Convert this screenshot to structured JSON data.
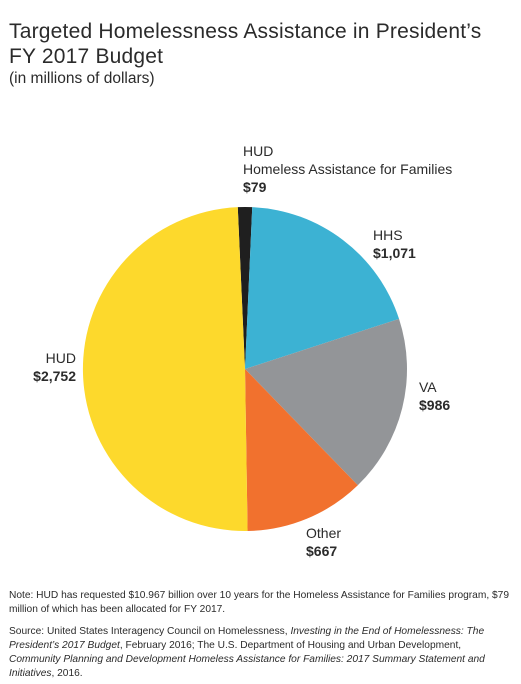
{
  "chart_data": {
    "type": "pie",
    "title": "Targeted Homelessness Assistance in President’s FY 2017 Budget",
    "subtitle": "(in millions of dollars)",
    "slices": [
      {
        "label_line1": "HUD",
        "label_line2": "Homeless Assistance for Families",
        "value": 79,
        "value_label": "$79",
        "color": "#1f1f1f"
      },
      {
        "label_line1": "HHS",
        "value": 1071,
        "value_label": "$1,071",
        "color": "#3cb2d3"
      },
      {
        "label_line1": "VA",
        "value": 986,
        "value_label": "$986",
        "color": "#939598"
      },
      {
        "label_line1": "Other",
        "value": 667,
        "value_label": "$667",
        "color": "#f1712e"
      },
      {
        "label_line1": "HUD",
        "value": 2752,
        "value_label": "$2,752",
        "color": "#fdd92c"
      }
    ]
  },
  "footer": {
    "note": "Note: HUD has requested $10.967 billion over 10 years for the Homeless Assistance for Families program, $79 million of which has been allocated for FY 2017.",
    "source_prefix": "Source: United States Interagency Council on Homelessness, ",
    "source_title1": "Investing in the End of Homelessness: The President’s 2017 Budget",
    "source_mid": ", February 2016; The U.S. Department of Housing and Urban Development, ",
    "source_title2": "Community Planning and Development Homeless Assistance for Families: 2017 Summary Statement and Initiatives",
    "source_suffix": ", 2016."
  }
}
